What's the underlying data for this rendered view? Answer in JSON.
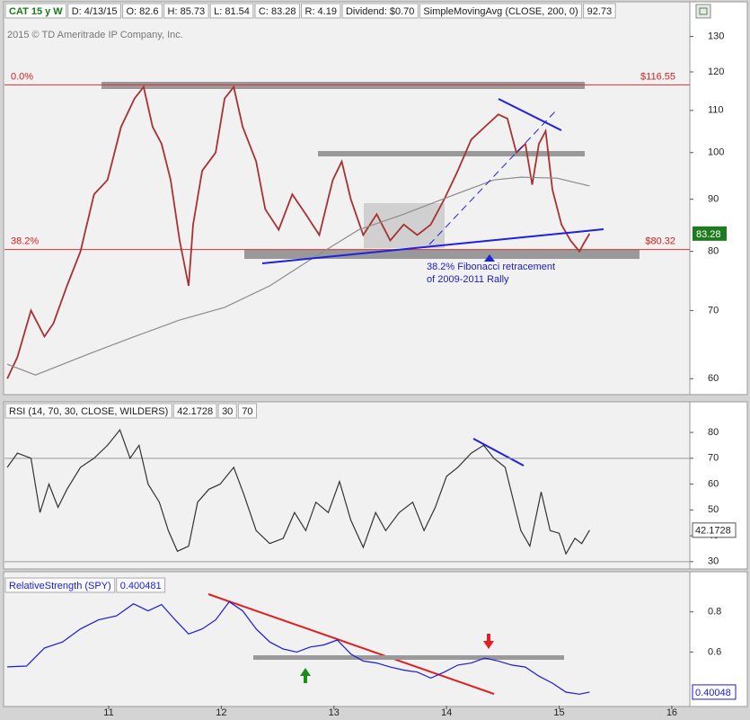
{
  "chart_data": [
    {
      "type": "line",
      "header": [
        "CAT 15 y W",
        "D: 4/13/15",
        "O: 82.6",
        "H: 85.73",
        "L: 81.54",
        "C: 83.28",
        "R: 4.19",
        "Dividend: $0.70",
        "SimpleMovingAvg (CLOSE, 200, 0)",
        "92.73"
      ],
      "copyright": "2015 © TD Ameritrade IP Company, Inc.",
      "log_scale": true,
      "xlim": [
        10.075,
        16.16
      ],
      "ylim": [
        58,
        135
      ],
      "yticks": [
        60,
        70,
        80,
        90,
        100,
        110,
        120,
        130
      ],
      "series": [
        {
          "color": "#a83232",
          "x": [
            10.1,
            10.19,
            10.31,
            10.43,
            10.51,
            10.63,
            10.75,
            10.87,
            10.99,
            11.11,
            11.23,
            11.31,
            11.39,
            11.47,
            11.55,
            11.63,
            11.71,
            11.75,
            11.83,
            11.95,
            12.03,
            12.11,
            12.19,
            12.31,
            12.39,
            12.51,
            12.63,
            12.75,
            12.87,
            12.99,
            13.07,
            13.15,
            13.26,
            13.38,
            13.5,
            13.62,
            13.74,
            13.86,
            13.98,
            14.1,
            14.22,
            14.34,
            14.46,
            14.54,
            14.62,
            14.7,
            14.76,
            14.82,
            14.88,
            14.94,
            15.02,
            15.1,
            15.18,
            15.22,
            15.27
          ],
          "values": [
            60,
            63,
            70,
            66,
            68,
            74,
            80,
            91,
            94,
            106,
            113,
            116,
            106,
            102,
            94,
            82,
            74,
            85,
            96,
            100,
            113,
            116,
            106,
            98,
            88,
            84,
            91,
            87,
            83,
            94,
            98,
            90,
            83,
            87,
            82,
            85,
            83,
            85,
            90,
            96,
            103,
            106,
            109,
            108,
            100,
            102,
            93,
            102,
            105,
            92,
            85,
            82,
            80,
            81.5,
            83.28
          ]
        },
        {
          "color": "#8c8c8c",
          "x": [
            10.1,
            10.35,
            10.83,
            11.23,
            11.63,
            12.03,
            12.43,
            12.83,
            13.22,
            13.62,
            14.02,
            14.42,
            14.66,
            14.98,
            15.27
          ],
          "values": [
            62,
            60.5,
            63.5,
            66,
            68.5,
            70.5,
            74,
            79,
            84,
            87,
            90.5,
            94,
            94.6,
            94.4,
            92.73
          ]
        }
      ],
      "levels": [
        {
          "value": 116.55,
          "label": "$116.55",
          "name": "0.0%"
        },
        {
          "value": 80.32,
          "label": "$80.32",
          "name": "38.2%"
        }
      ],
      "annotation": [
        "38.2% Fibonacci retracement",
        "of 2009-2011 Rally"
      ],
      "last_label": "83.28"
    },
    {
      "type": "line",
      "header": [
        "RSI (14, 70, 30, CLOSE, WILDERS)",
        "42.1728"
      ],
      "hlines": [
        30,
        70
      ],
      "xlim": [
        10.075,
        16.16
      ],
      "ylim": [
        27.5,
        91.5
      ],
      "yticks": [
        30,
        40,
        50,
        60,
        70,
        80
      ],
      "series": [
        {
          "color": "#333333",
          "x": [
            10.1,
            10.19,
            10.31,
            10.39,
            10.47,
            10.55,
            10.63,
            10.75,
            10.87,
            10.99,
            11.1,
            11.19,
            11.27,
            11.35,
            11.45,
            11.53,
            11.61,
            11.71,
            11.79,
            11.89,
            11.99,
            12.11,
            12.2,
            12.31,
            12.43,
            12.55,
            12.65,
            12.75,
            12.84,
            12.95,
            13.05,
            13.15,
            13.26,
            13.37,
            13.46,
            13.58,
            13.7,
            13.8,
            13.9,
            14.0,
            14.1,
            14.22,
            14.33,
            14.42,
            14.52,
            14.58,
            14.66,
            14.74,
            14.84,
            14.92,
            15.0,
            15.06,
            15.14,
            15.2,
            15.27
          ],
          "values": [
            66.5,
            72,
            70,
            49,
            60,
            51,
            58,
            66.5,
            70,
            75,
            81,
            70,
            75,
            60,
            53,
            42,
            34,
            36,
            53,
            58,
            60,
            66.5,
            56,
            42,
            37,
            39,
            49,
            42,
            53,
            49,
            61,
            46,
            35.5,
            49,
            42,
            49,
            53,
            42,
            51,
            63,
            66.5,
            72,
            75,
            70,
            66.5,
            56,
            42,
            36,
            57,
            42,
            41,
            33,
            39,
            37,
            42.1728
          ]
        }
      ]
    },
    {
      "type": "line",
      "header": [
        "RelativeStrength (SPY)",
        "0.400481"
      ],
      "last_label": "0.40048",
      "xlim": [
        10.075,
        16.16
      ],
      "xticks": [
        11,
        12,
        13,
        14,
        15,
        16
      ],
      "ylim": [
        0.333,
        1.0
      ],
      "yticks": [
        0.6,
        0.8
      ],
      "series": [
        {
          "color": "#1a1adc",
          "x": [
            10.1,
            10.27,
            10.43,
            10.59,
            10.75,
            10.91,
            11.07,
            11.22,
            11.35,
            11.47,
            11.59,
            11.71,
            11.83,
            11.95,
            12.07,
            12.19,
            12.31,
            12.43,
            12.55,
            12.67,
            12.79,
            12.91,
            13.03,
            13.15,
            13.26,
            13.38,
            13.5,
            13.62,
            13.74,
            13.86,
            13.98,
            14.1,
            14.22,
            14.34,
            14.46,
            14.58,
            14.7,
            14.82,
            14.94,
            15.06,
            15.18,
            15.27
          ],
          "values": [
            0.526,
            0.53,
            0.62,
            0.65,
            0.715,
            0.76,
            0.78,
            0.84,
            0.805,
            0.836,
            0.76,
            0.69,
            0.715,
            0.76,
            0.85,
            0.805,
            0.715,
            0.65,
            0.615,
            0.6,
            0.625,
            0.635,
            0.66,
            0.59,
            0.555,
            0.545,
            0.525,
            0.51,
            0.5,
            0.47,
            0.5,
            0.535,
            0.545,
            0.57,
            0.555,
            0.535,
            0.525,
            0.48,
            0.445,
            0.4,
            0.39,
            0.400481
          ]
        }
      ]
    }
  ]
}
